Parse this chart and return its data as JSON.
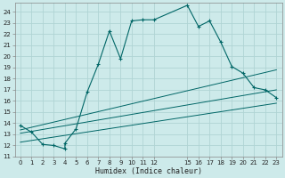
{
  "xlabel": "Humidex (Indice chaleur)",
  "bg_color": "#cdeaea",
  "grid_color": "#b0d4d4",
  "line_color": "#006666",
  "xlim": [
    -0.5,
    23.5
  ],
  "ylim": [
    11,
    24.8
  ],
  "yticks": [
    11,
    12,
    13,
    14,
    15,
    16,
    17,
    18,
    19,
    20,
    21,
    22,
    23,
    24
  ],
  "xtick_positions": [
    0,
    1,
    2,
    3,
    4,
    5,
    6,
    7,
    8,
    9,
    10,
    11,
    12,
    15,
    16,
    17,
    18,
    19,
    20,
    21,
    22,
    23
  ],
  "xtick_labels": [
    "0",
    "1",
    "2",
    "3",
    "4",
    "5",
    "6",
    "7",
    "8",
    "9",
    "10",
    "11",
    "12",
    "15",
    "16",
    "17",
    "18",
    "19",
    "20",
    "21",
    "22",
    "23"
  ],
  "series1_x": [
    0,
    1,
    2,
    3,
    4,
    4,
    5,
    6,
    7,
    8,
    9,
    10,
    11,
    12,
    15,
    16,
    17,
    18,
    19,
    20,
    21,
    22,
    23
  ],
  "series1_y": [
    13.8,
    13.2,
    12.1,
    12.0,
    11.7,
    12.2,
    13.5,
    16.8,
    19.3,
    22.3,
    19.8,
    23.2,
    23.3,
    23.3,
    24.6,
    22.7,
    23.2,
    21.3,
    19.1,
    18.5,
    17.2,
    17.0,
    16.3
  ],
  "series2_x": [
    0,
    23
  ],
  "series2_y": [
    13.4,
    18.8
  ],
  "series3_x": [
    0,
    23
  ],
  "series3_y": [
    13.1,
    17.0
  ],
  "series4_x": [
    0,
    23
  ],
  "series4_y": [
    12.3,
    15.8
  ]
}
